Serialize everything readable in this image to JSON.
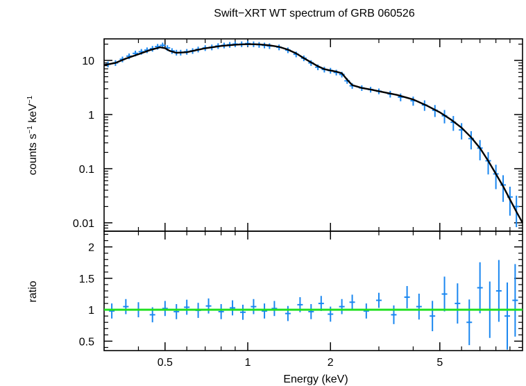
{
  "chart_data": [
    {
      "type": "scatter",
      "title": "Swift−XRT WT spectrum of GRB 060526",
      "xlabel": "Energy (keV)",
      "ylabel_main": "counts s",
      "ylabel_sup1": "−1",
      "ylabel_mid": " keV",
      "ylabel_sup2": "−1",
      "xscale": "log",
      "yscale": "log",
      "xlim": [
        0.3,
        10
      ],
      "ylim": [
        0.007,
        25
      ],
      "xticks": [
        0.5,
        1,
        2,
        5
      ],
      "xtick_labels": [
        "0.5",
        "1",
        "2",
        "5"
      ],
      "yticks": [
        10,
        1,
        0.1,
        0.01
      ],
      "ytick_labels": [
        "10",
        "1",
        "0.1",
        "0.01"
      ],
      "grid": false,
      "data_color": "#1a87f0",
      "model_color": "#000000",
      "series": [
        {
          "kind": "data",
          "x": [
            0.31,
            0.33,
            0.35,
            0.37,
            0.39,
            0.41,
            0.43,
            0.45,
            0.47,
            0.49,
            0.51,
            0.53,
            0.55,
            0.57,
            0.6,
            0.63,
            0.66,
            0.7,
            0.74,
            0.78,
            0.82,
            0.86,
            0.9,
            0.95,
            1.0,
            1.05,
            1.1,
            1.15,
            1.2,
            1.3,
            1.4,
            1.5,
            1.6,
            1.7,
            1.8,
            1.9,
            2.0,
            2.1,
            2.2,
            2.3,
            2.4,
            2.6,
            2.8,
            3.0,
            3.3,
            3.6,
            4.0,
            4.4,
            4.8,
            5.2,
            5.6,
            6.0,
            6.5,
            7.0,
            7.5,
            8.0,
            8.5,
            9.0,
            9.5
          ],
          "y": [
            8.5,
            9.0,
            10.5,
            12.0,
            13.5,
            14.5,
            15.5,
            16.5,
            18.0,
            19.0,
            17.0,
            15.0,
            14.0,
            14.0,
            14.5,
            15.0,
            16.0,
            17.0,
            17.5,
            18.5,
            19.0,
            19.5,
            20.0,
            20.0,
            20.5,
            20.0,
            19.5,
            19.0,
            18.5,
            17.5,
            15.5,
            13.0,
            11.0,
            9.0,
            7.5,
            6.8,
            6.5,
            6.0,
            5.5,
            4.2,
            3.4,
            3.1,
            2.9,
            2.7,
            2.4,
            2.1,
            1.8,
            1.5,
            1.2,
            0.95,
            0.72,
            0.52,
            0.36,
            0.24,
            0.14,
            0.08,
            0.05,
            0.03,
            0.02
          ]
        },
        {
          "kind": "model",
          "x": [
            0.3,
            0.33,
            0.36,
            0.4,
            0.44,
            0.48,
            0.5,
            0.52,
            0.55,
            0.6,
            0.65,
            0.7,
            0.8,
            0.9,
            1.0,
            1.1,
            1.2,
            1.3,
            1.4,
            1.5,
            1.6,
            1.7,
            1.8,
            1.9,
            2.0,
            2.1,
            2.2,
            2.3,
            2.4,
            2.6,
            2.8,
            3.0,
            3.5,
            4.0,
            4.5,
            5.0,
            5.5,
            6.0,
            6.5,
            7.0,
            7.5,
            8.0,
            8.5,
            9.0,
            9.5,
            10.0
          ],
          "y": [
            8.2,
            9.0,
            10.8,
            13.0,
            15.5,
            17.5,
            16.8,
            15.0,
            13.8,
            14.2,
            15.5,
            16.8,
            18.5,
            19.5,
            20.0,
            19.8,
            19.0,
            17.8,
            15.8,
            13.5,
            11.0,
            9.2,
            7.8,
            6.9,
            6.5,
            6.2,
            5.8,
            4.4,
            3.5,
            3.1,
            2.9,
            2.7,
            2.3,
            1.9,
            1.45,
            1.1,
            0.8,
            0.57,
            0.38,
            0.24,
            0.14,
            0.08,
            0.047,
            0.027,
            0.016,
            0.01
          ]
        }
      ]
    },
    {
      "type": "scatter",
      "xlabel": "Energy (keV)",
      "ylabel": "ratio",
      "xscale": "log",
      "xlim": [
        0.3,
        10
      ],
      "ylim": [
        0.35,
        2.25
      ],
      "yticks": [
        0.5,
        1,
        1.5,
        2
      ],
      "ytick_labels": [
        "0.5",
        "1",
        "1.5",
        "2"
      ],
      "reference_line": 1,
      "reference_color": "#22e022",
      "data_color": "#1a87f0",
      "series": [
        {
          "kind": "ratio",
          "x": [
            0.32,
            0.36,
            0.4,
            0.45,
            0.5,
            0.55,
            0.6,
            0.66,
            0.72,
            0.8,
            0.88,
            0.96,
            1.05,
            1.15,
            1.25,
            1.4,
            1.55,
            1.7,
            1.85,
            2.0,
            2.2,
            2.4,
            2.7,
            3.0,
            3.4,
            3.8,
            4.2,
            4.7,
            5.2,
            5.8,
            6.4,
            7.0,
            7.6,
            8.2,
            8.8,
            9.4
          ],
          "y": [
            0.98,
            1.05,
            1.0,
            0.92,
            1.02,
            0.97,
            1.04,
            0.99,
            1.06,
            0.97,
            1.03,
            0.96,
            1.05,
            0.98,
            1.02,
            0.94,
            1.08,
            0.97,
            1.1,
            0.93,
            1.05,
            1.12,
            0.98,
            1.15,
            0.92,
            1.2,
            1.05,
            0.9,
            1.25,
            1.1,
            0.8,
            1.35,
            1.0,
            1.3,
            0.9,
            1.15
          ]
        }
      ]
    }
  ]
}
